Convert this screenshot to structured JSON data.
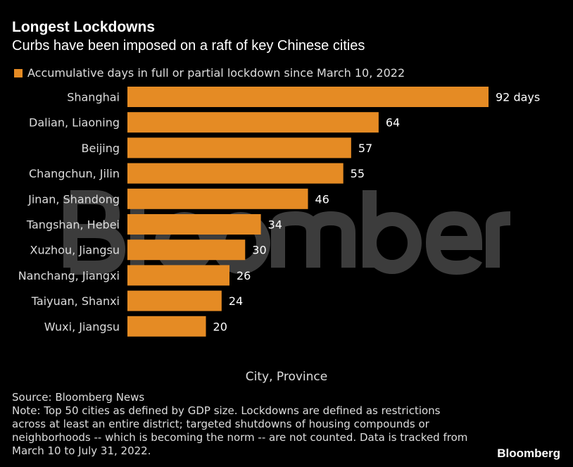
{
  "chart_data": {
    "type": "bar",
    "orientation": "horizontal",
    "title": "Longest Lockdowns",
    "subtitle": "Curbs have been imposed on a raft of key Chinese cities",
    "legend": [
      "Accumulative days in full or partial lockdown since March 10, 2022"
    ],
    "legend_placement": "top-left",
    "categories": [
      "Shanghai",
      "Dalian, Liaoning",
      "Beijing",
      "Changchun, Jilin",
      "Jinan, Shandong",
      "Tangshan, Hebei",
      "Xuzhou, Jiangsu",
      "Nanchang, Jiangxi",
      "Taiyuan, Shanxi",
      "Wuxi, Jiangsu"
    ],
    "values": [
      92,
      64,
      57,
      55,
      46,
      34,
      30,
      26,
      24,
      20
    ],
    "data_labels": [
      "92 days",
      "64",
      "57",
      "55",
      "46",
      "34",
      "30",
      "26",
      "24",
      "20"
    ],
    "xlabel": "City, Province",
    "color": "#e58b24",
    "grid": false
  },
  "footer": {
    "source": "Source: Bloomberg News",
    "note": "Note: Top 50 cities as defined by GDP size. Lockdowns are defined as restrictions across at least an entire district; targeted shutdowns of housing compounds or neighborhoods -- which is becoming the norm -- are not counted. Data is tracked from March 10 to July 31, 2022.",
    "logo": "Bloomberg",
    "watermark": "Bloomberg"
  }
}
